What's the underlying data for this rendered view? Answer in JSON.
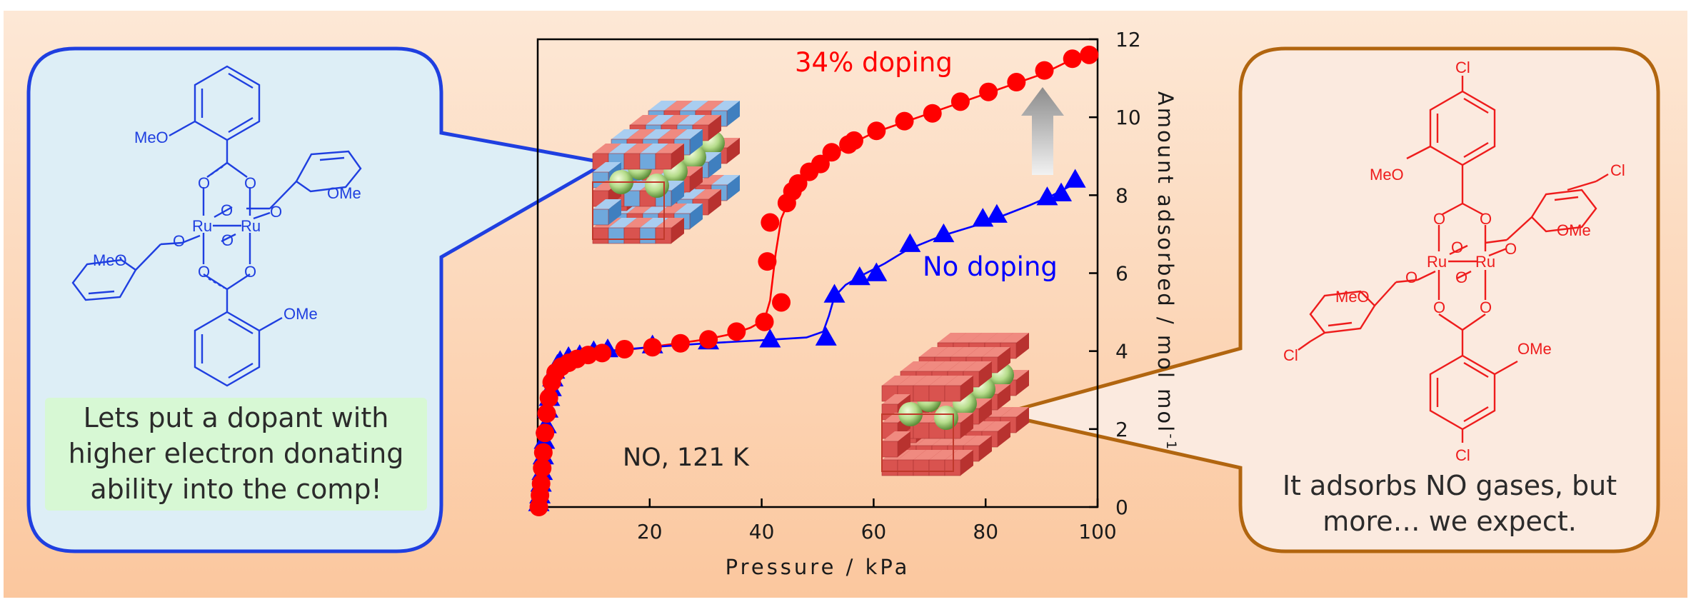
{
  "left_panel": {
    "labels": {
      "meo_top": "MeO",
      "ome_right": "OMe",
      "meo_left": "MeO",
      "ome_bottom": "OMe",
      "ru": "Ru",
      "o": "O"
    },
    "note": "Lets put a dopant with higher electron donating ability into the comp!"
  },
  "right_panel": {
    "labels": {
      "cl_top": "Cl",
      "cl_right": "Cl",
      "cl_left": "Cl",
      "cl_bottom": "Cl",
      "meo_top": "MeO",
      "ome_right": "OMe",
      "meo_left": "MeO",
      "ome_bottom": "OMe",
      "ru": "Ru",
      "o": "O"
    },
    "note": "It adsorbs NO gases, but more… we expect."
  },
  "chart_data": {
    "type": "scatter",
    "xlabel": "Pressure / kPa",
    "ylabel": "Amount adsorbed / mol mol",
    "ylabel_sup": "-1",
    "xlim": [
      0,
      100
    ],
    "ylim": [
      0,
      12
    ],
    "xticks": [
      20,
      40,
      60,
      80,
      100
    ],
    "yticks": [
      0,
      2,
      4,
      6,
      8,
      10,
      12
    ],
    "condition_label": "NO, 121 K",
    "series": [
      {
        "name": "34% doping",
        "color": "#ff0000",
        "marker": "circle",
        "x": [
          0.2,
          0.4,
          0.6,
          0.8,
          1.0,
          1.3,
          1.6,
          2.0,
          2.5,
          3.2,
          4.2,
          5.5,
          7.0,
          9.0,
          11.5,
          15.5,
          20.5,
          25.5,
          30.5,
          35.5,
          40.5,
          41.0,
          41.5,
          43.5,
          44.5,
          45.5,
          46.5,
          48.5,
          50.5,
          52.5,
          55.5,
          56.5,
          60.5,
          65.5,
          70.5,
          75.5,
          80.5,
          85.5,
          90.5,
          95.5,
          98.5
        ],
        "y": [
          0.0,
          0.3,
          0.6,
          1.0,
          1.4,
          1.9,
          2.4,
          2.8,
          3.2,
          3.45,
          3.6,
          3.7,
          3.8,
          3.9,
          3.95,
          4.05,
          4.1,
          4.2,
          4.3,
          4.5,
          4.75,
          6.3,
          7.3,
          5.25,
          7.8,
          8.1,
          8.3,
          8.6,
          8.8,
          9.1,
          9.3,
          9.4,
          9.65,
          9.9,
          10.1,
          10.4,
          10.65,
          10.9,
          11.2,
          11.5,
          11.6
        ]
      },
      {
        "name": "No doping",
        "color": "#0000ff",
        "marker": "triangle",
        "x": [
          0.2,
          0.4,
          0.6,
          0.8,
          1.0,
          1.2,
          1.5,
          1.8,
          2.1,
          2.4,
          2.7,
          3.0,
          3.5,
          4.0,
          5.5,
          7.5,
          10.0,
          12.5,
          20.5,
          30.5,
          41.5,
          51.5,
          53.0,
          57.5,
          60.5,
          66.5,
          72.5,
          79.5,
          82.0,
          91.0,
          93.5,
          96.0
        ],
        "y": [
          0.1,
          0.3,
          0.6,
          0.9,
          1.3,
          1.7,
          2.1,
          2.5,
          2.8,
          3.05,
          3.3,
          3.5,
          3.65,
          3.75,
          3.85,
          3.9,
          4.0,
          4.05,
          4.15,
          4.25,
          4.3,
          4.35,
          5.45,
          5.9,
          6.0,
          6.75,
          7.0,
          7.4,
          7.5,
          7.95,
          8.05,
          8.4
        ]
      }
    ],
    "curves": [
      {
        "series": "34% doping",
        "x": [
          0,
          0.3,
          0.7,
          1.2,
          1.8,
          2.6,
          3.6,
          5,
          7,
          10,
          15,
          20,
          25,
          30,
          35,
          38,
          40.5,
          41.5,
          42.5,
          43.5,
          45,
          47,
          50,
          55,
          60,
          70,
          80,
          90,
          95,
          100
        ],
        "y": [
          0,
          0.4,
          1.2,
          2.0,
          2.7,
          3.2,
          3.45,
          3.65,
          3.8,
          3.92,
          4.02,
          4.1,
          4.2,
          4.3,
          4.45,
          4.6,
          4.8,
          5.3,
          6.5,
          7.4,
          7.9,
          8.3,
          8.7,
          9.25,
          9.6,
          10.1,
          10.6,
          11.1,
          11.45,
          11.65
        ]
      },
      {
        "series": "No doping",
        "x": [
          0,
          0.4,
          0.9,
          1.5,
          2.1,
          2.8,
          3.6,
          5,
          8,
          12,
          20,
          30,
          40,
          48,
          51,
          52,
          53,
          55,
          58,
          62,
          66,
          72,
          80,
          88,
          92,
          96
        ],
        "y": [
          0,
          0.5,
          1.2,
          2.0,
          2.7,
          3.3,
          3.6,
          3.8,
          3.9,
          4.0,
          4.1,
          4.2,
          4.28,
          4.35,
          4.5,
          4.9,
          5.4,
          5.7,
          5.95,
          6.25,
          6.6,
          6.95,
          7.3,
          7.75,
          8.0,
          8.3
        ]
      }
    ]
  }
}
